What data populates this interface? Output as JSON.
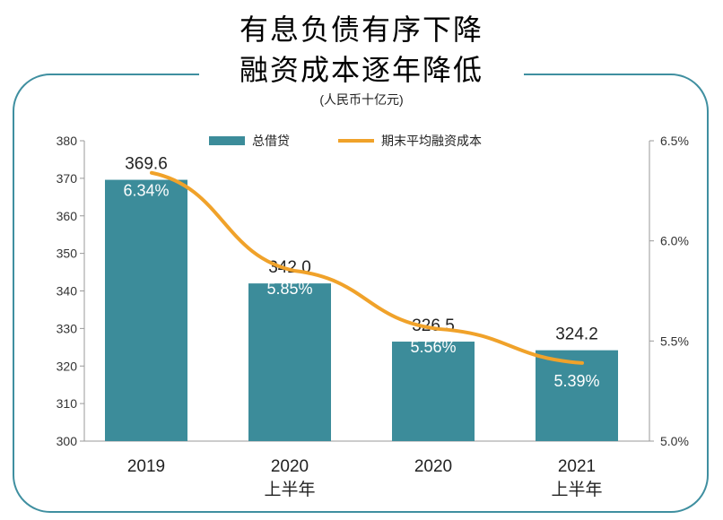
{
  "title_line1": "有息负债有序下降",
  "title_line2": "融资成本逐年降低",
  "unit": "(人民币十亿元)",
  "colors": {
    "bar": "#3c8c9a",
    "line": "#f0a22a",
    "frame": "#3f8fa0"
  },
  "chart_data": {
    "type": "bar",
    "categories": [
      [
        "2019"
      ],
      [
        "2020",
        "上半年"
      ],
      [
        "2020"
      ],
      [
        "2021",
        "上半年"
      ]
    ],
    "series": [
      {
        "name": "总借贷",
        "type": "bar",
        "axis": "left",
        "values": [
          369.6,
          342.0,
          326.5,
          324.2
        ],
        "labels": [
          "369.6",
          "342.0",
          "326.5",
          "324.2"
        ]
      },
      {
        "name": "期末平均融资成本",
        "type": "line",
        "axis": "right",
        "values": [
          6.34,
          5.85,
          5.56,
          5.39
        ],
        "labels": [
          "6.34%",
          "5.85%",
          "5.56%",
          "5.39%"
        ]
      }
    ],
    "y_left": {
      "lim": [
        300,
        380
      ],
      "ticks": [
        "300",
        "310",
        "320",
        "330",
        "340",
        "350",
        "360",
        "370",
        "380"
      ]
    },
    "y_right": {
      "lim": [
        5.0,
        6.5
      ],
      "ticks": [
        "5.0%",
        "5.5%",
        "6.0%",
        "6.5%"
      ]
    },
    "legend": "top-center",
    "grid": false
  }
}
